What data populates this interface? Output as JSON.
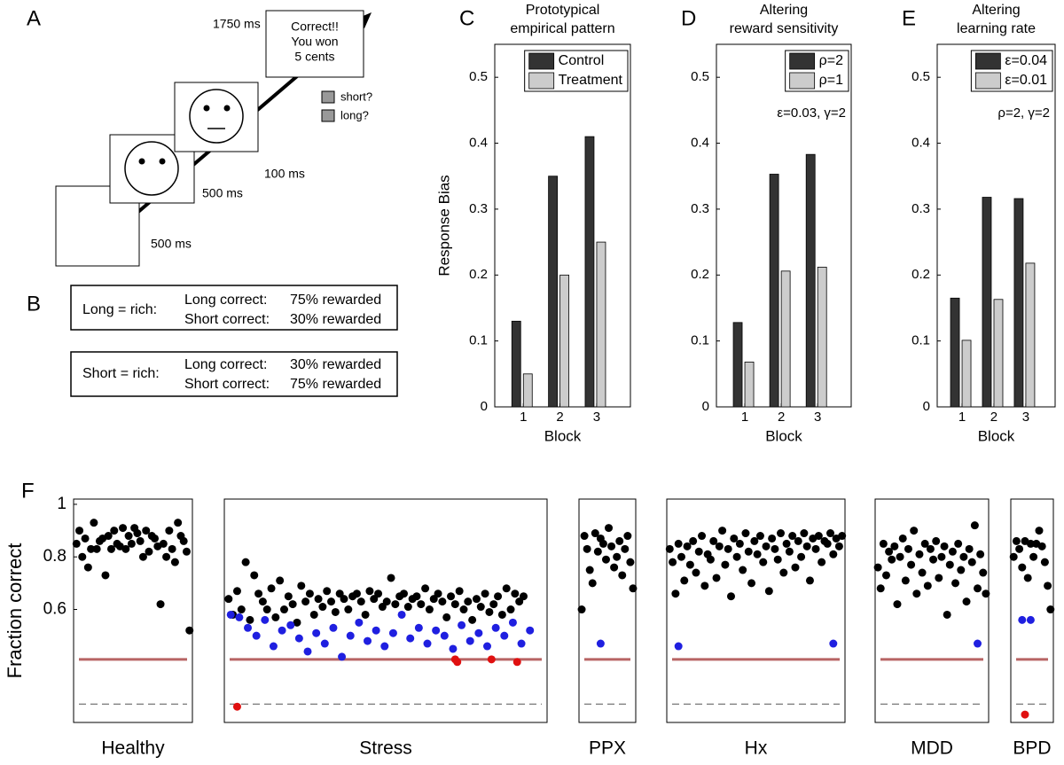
{
  "panel_a": {
    "label": "A",
    "feedback": [
      "Correct!!",
      "You won",
      "5 cents"
    ],
    "durations": [
      "1750 ms",
      "100 ms",
      "500 ms",
      "500 ms"
    ],
    "responses": [
      "short?",
      "long?"
    ]
  },
  "panel_b": {
    "label": "B",
    "conditions": [
      {
        "name": "Long = rich:",
        "rows": [
          [
            "Long correct:",
            "75% rewarded"
          ],
          [
            "Short correct:",
            "30% rewarded"
          ]
        ]
      },
      {
        "name": "Short = rich:",
        "rows": [
          [
            "Long correct:",
            "30% rewarded"
          ],
          [
            "Short correct:",
            "75% rewarded"
          ]
        ]
      }
    ]
  },
  "chart_data": [
    {
      "type": "bar",
      "panel": "C",
      "title": [
        "Prototypical",
        "empirical pattern"
      ],
      "ylabel": "Response Bias",
      "xlabel": "Block",
      "categories": [
        "1",
        "2",
        "3"
      ],
      "ylim": [
        0,
        0.55
      ],
      "yticks": [
        0,
        0.1,
        0.2,
        0.3,
        0.4,
        0.5
      ],
      "series": [
        {
          "name": "Control",
          "color": "#333333",
          "values": [
            0.13,
            0.35,
            0.41
          ]
        },
        {
          "name": "Treatment",
          "color": "#cccccc",
          "values": [
            0.05,
            0.2,
            0.25
          ]
        }
      ]
    },
    {
      "type": "bar",
      "panel": "D",
      "title": [
        "Altering",
        "reward sensitivity"
      ],
      "xlabel": "Block",
      "annotation": "ε=0.03, γ=2",
      "categories": [
        "1",
        "2",
        "3"
      ],
      "ylim": [
        0,
        0.55
      ],
      "yticks": [
        0,
        0.1,
        0.2,
        0.3,
        0.4,
        0.5
      ],
      "series": [
        {
          "name": "ρ=2",
          "color": "#333333",
          "values": [
            0.128,
            0.353,
            0.383
          ]
        },
        {
          "name": "ρ=1",
          "color": "#cccccc",
          "values": [
            0.068,
            0.206,
            0.212
          ]
        }
      ]
    },
    {
      "type": "bar",
      "panel": "E",
      "title": [
        "Altering",
        "learning rate"
      ],
      "xlabel": "Block",
      "annotation": "ρ=2, γ=2",
      "categories": [
        "1",
        "2",
        "3"
      ],
      "ylim": [
        0,
        0.55
      ],
      "yticks": [
        0,
        0.1,
        0.2,
        0.3,
        0.4,
        0.5
      ],
      "series": [
        {
          "name": "ε=0.04",
          "color": "#333333",
          "values": [
            0.165,
            0.318,
            0.316
          ]
        },
        {
          "name": "ε=0.01",
          "color": "#cccccc",
          "values": [
            0.101,
            0.163,
            0.218
          ]
        }
      ]
    },
    {
      "type": "scatter",
      "panel": "F",
      "ylabel": "Fraction correct",
      "xlabel": "Healthy",
      "xlim": [
        0,
        41
      ],
      "ylim": [
        0.17,
        1.02
      ],
      "yticks": [
        0.6,
        0.8,
        1
      ],
      "hlines": [
        {
          "value": 0.41,
          "color": "#b86464"
        },
        {
          "value": 0.24,
          "color": "#555555",
          "style": "dashed"
        }
      ],
      "series": [
        {
          "color": "#000000",
          "x": [
            1,
            2,
            3,
            4,
            5,
            6,
            7,
            8,
            9,
            10,
            11,
            12,
            13,
            14,
            15,
            16,
            17,
            18,
            19,
            20,
            21,
            22,
            23,
            24,
            25,
            26,
            27,
            28,
            29,
            30,
            31,
            32,
            33,
            34,
            35,
            36,
            37,
            38,
            39,
            40
          ],
          "values": [
            0.85,
            0.9,
            0.8,
            0.87,
            0.76,
            0.83,
            0.93,
            0.83,
            0.86,
            0.87,
            0.73,
            0.88,
            0.83,
            0.9,
            0.85,
            0.84,
            0.91,
            0.83,
            0.88,
            0.85,
            0.91,
            0.89,
            0.86,
            0.8,
            0.9,
            0.82,
            0.88,
            0.87,
            0.84,
            0.62,
            0.85,
            0.8,
            0.9,
            0.83,
            0.78,
            0.93,
            0.88,
            0.86,
            0.82,
            0.52
          ]
        }
      ]
    },
    {
      "type": "scatter",
      "xlabel": "Stress",
      "xlim": [
        0,
        151
      ],
      "ylim": [
        0.17,
        1.02
      ],
      "hlines": [
        {
          "value": 0.41,
          "color": "#b86464"
        },
        {
          "value": 0.24,
          "color": "#555555",
          "style": "dashed"
        }
      ],
      "series": [
        {
          "color": "#000000",
          "x": [
            2,
            4,
            6,
            8,
            10,
            12,
            14,
            16,
            18,
            20,
            22,
            24,
            26,
            28,
            30,
            32,
            34,
            36,
            38,
            40,
            42,
            44,
            46,
            48,
            50,
            52,
            54,
            56,
            58,
            60,
            62,
            64,
            66,
            68,
            70,
            72,
            74,
            76,
            78,
            80,
            82,
            84,
            86,
            88,
            90,
            92,
            94,
            96,
            98,
            100,
            102,
            104,
            106,
            108,
            110,
            112,
            114,
            116,
            118,
            120,
            122,
            124,
            126,
            128,
            130,
            132,
            134,
            136,
            138,
            140
          ],
          "values": [
            0.64,
            0.58,
            0.67,
            0.6,
            0.78,
            0.56,
            0.73,
            0.66,
            0.63,
            0.6,
            0.68,
            0.57,
            0.71,
            0.6,
            0.65,
            0.62,
            0.55,
            0.69,
            0.63,
            0.66,
            0.58,
            0.64,
            0.61,
            0.67,
            0.63,
            0.59,
            0.66,
            0.64,
            0.6,
            0.65,
            0.66,
            0.63,
            0.58,
            0.67,
            0.64,
            0.66,
            0.61,
            0.63,
            0.72,
            0.62,
            0.65,
            0.66,
            0.61,
            0.64,
            0.65,
            0.62,
            0.68,
            0.6,
            0.64,
            0.66,
            0.63,
            0.57,
            0.65,
            0.62,
            0.67,
            0.6,
            0.63,
            0.56,
            0.64,
            0.61,
            0.66,
            0.59,
            0.62,
            0.65,
            0.58,
            0.68,
            0.6,
            0.66,
            0.63,
            0.65
          ]
        },
        {
          "color": "#1f1fe0",
          "x": [
            3,
            7,
            11,
            15,
            19,
            23,
            27,
            31,
            35,
            39,
            43,
            47,
            51,
            55,
            59,
            63,
            67,
            71,
            75,
            79,
            83,
            87,
            91,
            95,
            99,
            103,
            107,
            111,
            115,
            119,
            123,
            127,
            131,
            135,
            139,
            143
          ],
          "values": [
            0.58,
            0.57,
            0.53,
            0.5,
            0.56,
            0.46,
            0.52,
            0.54,
            0.49,
            0.44,
            0.51,
            0.47,
            0.53,
            0.42,
            0.5,
            0.55,
            0.48,
            0.52,
            0.46,
            0.51,
            0.58,
            0.49,
            0.53,
            0.47,
            0.52,
            0.5,
            0.45,
            0.54,
            0.48,
            0.51,
            0.46,
            0.53,
            0.5,
            0.55,
            0.47,
            0.52
          ]
        },
        {
          "color": "#e01010",
          "x": [
            6,
            108,
            109,
            125,
            137
          ],
          "values": [
            0.23,
            0.41,
            0.4,
            0.41,
            0.4
          ]
        }
      ]
    },
    {
      "type": "scatter",
      "xlabel": "PPX",
      "xlim": [
        0,
        21
      ],
      "ylim": [
        0.17,
        1.02
      ],
      "hlines": [
        {
          "value": 0.41,
          "color": "#b86464"
        },
        {
          "value": 0.24,
          "color": "#555555",
          "style": "dashed"
        }
      ],
      "series": [
        {
          "color": "#000000",
          "x": [
            1,
            2,
            3,
            4,
            5,
            6,
            7,
            8,
            9,
            10,
            11,
            12,
            13,
            14,
            15,
            16,
            17,
            18,
            19,
            20
          ],
          "values": [
            0.6,
            0.88,
            0.83,
            0.75,
            0.7,
            0.89,
            0.82,
            0.87,
            0.85,
            0.79,
            0.91,
            0.84,
            0.76,
            0.8,
            0.86,
            0.73,
            0.83,
            0.88,
            0.78,
            0.68
          ]
        },
        {
          "color": "#1f1fe0",
          "x": [
            8
          ],
          "values": [
            0.47
          ]
        }
      ]
    },
    {
      "type": "scatter",
      "xlabel": "Hx",
      "xlim": [
        0,
        61
      ],
      "ylim": [
        0.17,
        1.02
      ],
      "hlines": [
        {
          "value": 0.41,
          "color": "#b86464"
        },
        {
          "value": 0.24,
          "color": "#555555",
          "style": "dashed"
        }
      ],
      "series": [
        {
          "color": "#000000",
          "x": [
            1,
            2,
            3,
            4,
            5,
            6,
            7,
            8,
            9,
            10,
            11,
            12,
            13,
            14,
            15,
            16,
            17,
            18,
            19,
            20,
            21,
            22,
            23,
            24,
            25,
            26,
            27,
            28,
            29,
            30,
            31,
            32,
            33,
            34,
            35,
            36,
            37,
            38,
            39,
            40,
            41,
            42,
            43,
            44,
            45,
            46,
            47,
            48,
            49,
            50,
            51,
            52,
            53,
            54,
            55,
            56,
            57,
            58,
            59,
            60
          ],
          "values": [
            0.83,
            0.78,
            0.66,
            0.85,
            0.8,
            0.71,
            0.84,
            0.77,
            0.86,
            0.74,
            0.82,
            0.88,
            0.69,
            0.81,
            0.79,
            0.86,
            0.72,
            0.84,
            0.9,
            0.77,
            0.83,
            0.65,
            0.87,
            0.8,
            0.85,
            0.75,
            0.89,
            0.82,
            0.7,
            0.86,
            0.81,
            0.88,
            0.78,
            0.84,
            0.67,
            0.87,
            0.83,
            0.79,
            0.89,
            0.74,
            0.85,
            0.82,
            0.88,
            0.76,
            0.86,
            0.8,
            0.89,
            0.84,
            0.71,
            0.87,
            0.83,
            0.88,
            0.78,
            0.86,
            0.85,
            0.89,
            0.81,
            0.87,
            0.84,
            0.88
          ]
        },
        {
          "color": "#1f1fe0",
          "x": [
            4,
            57
          ],
          "values": [
            0.46,
            0.47
          ]
        }
      ]
    },
    {
      "type": "scatter",
      "xlabel": "MDD",
      "xlim": [
        0,
        41
      ],
      "ylim": [
        0.17,
        1.02
      ],
      "hlines": [
        {
          "value": 0.41,
          "color": "#b86464"
        },
        {
          "value": 0.24,
          "color": "#555555",
          "style": "dashed"
        }
      ],
      "series": [
        {
          "color": "#000000",
          "x": [
            1,
            2,
            3,
            4,
            5,
            6,
            7,
            8,
            9,
            10,
            11,
            12,
            13,
            14,
            15,
            16,
            17,
            18,
            19,
            20,
            21,
            22,
            23,
            24,
            25,
            26,
            27,
            28,
            29,
            30,
            31,
            32,
            33,
            34,
            35,
            36,
            37,
            38,
            39,
            40
          ],
          "values": [
            0.76,
            0.68,
            0.85,
            0.73,
            0.82,
            0.79,
            0.84,
            0.62,
            0.8,
            0.87,
            0.71,
            0.83,
            0.77,
            0.9,
            0.66,
            0.81,
            0.74,
            0.85,
            0.69,
            0.83,
            0.79,
            0.86,
            0.72,
            0.8,
            0.84,
            0.58,
            0.77,
            0.82,
            0.7,
            0.85,
            0.75,
            0.8,
            0.63,
            0.83,
            0.78,
            0.92,
            0.68,
            0.81,
            0.74,
            0.66
          ]
        },
        {
          "color": "#1f1fe0",
          "x": [
            37
          ],
          "values": [
            0.47
          ]
        }
      ]
    },
    {
      "type": "scatter",
      "xlabel": "BPD",
      "xlim": [
        0,
        15
      ],
      "ylim": [
        0.17,
        1.02
      ],
      "hlines": [
        {
          "value": 0.41,
          "color": "#b86464"
        },
        {
          "value": 0.24,
          "color": "#555555",
          "style": "dashed"
        }
      ],
      "series": [
        {
          "color": "#000000",
          "x": [
            1,
            2,
            3,
            4,
            5,
            6,
            7,
            8,
            9,
            10,
            11,
            12,
            13,
            14
          ],
          "values": [
            0.8,
            0.86,
            0.83,
            0.76,
            0.86,
            0.72,
            0.85,
            0.8,
            0.85,
            0.9,
            0.84,
            0.78,
            0.69,
            0.6
          ]
        },
        {
          "color": "#1f1fe0",
          "x": [
            4,
            7
          ],
          "values": [
            0.56,
            0.56
          ]
        },
        {
          "color": "#e01010",
          "x": [
            5
          ],
          "values": [
            0.2
          ]
        }
      ]
    }
  ]
}
